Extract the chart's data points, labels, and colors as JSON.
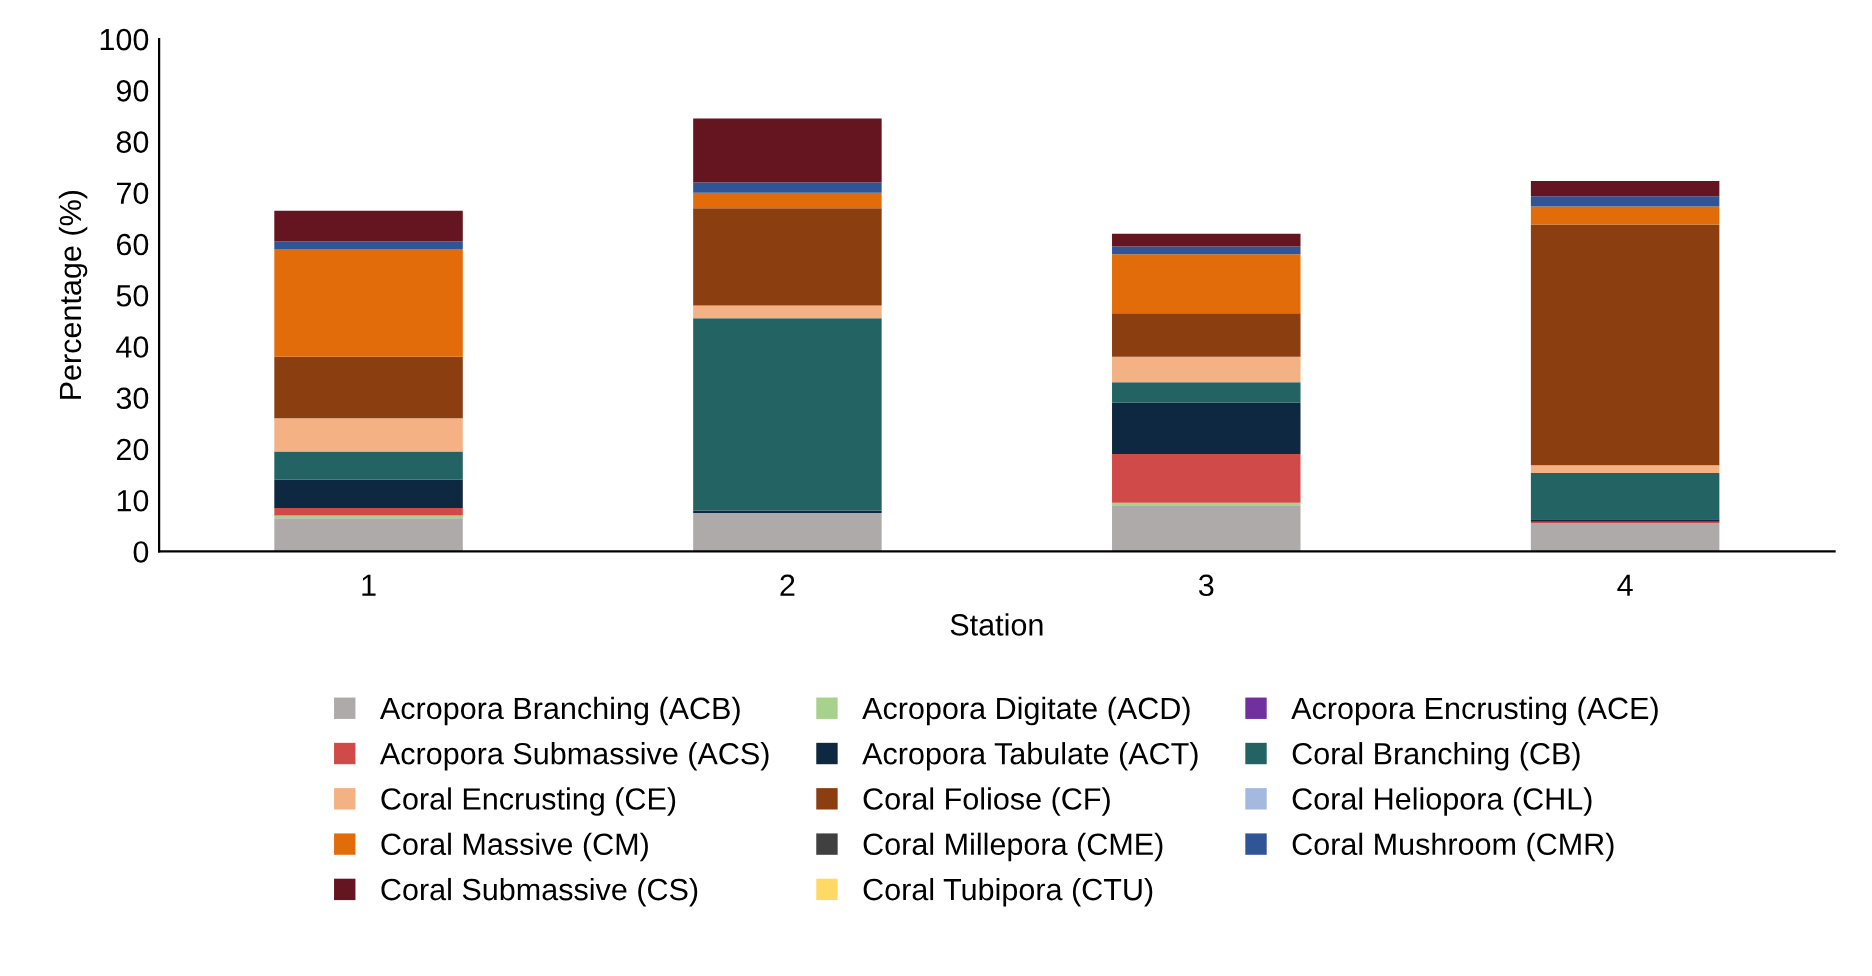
{
  "chart_data": {
    "type": "bar",
    "stacked": true,
    "xlabel": "Station",
    "ylabel": "Percentage (%)",
    "categories": [
      "1",
      "2",
      "3",
      "4"
    ],
    "ylim": [
      0,
      100
    ],
    "yticks": [
      0,
      10,
      20,
      30,
      40,
      50,
      60,
      70,
      80,
      90,
      100
    ],
    "grid": false,
    "legend": "bottom",
    "series": [
      {
        "name": "Acropora Branching (ACB)",
        "color": "#aeaaaa",
        "values": [
          6.5,
          7.5,
          9,
          5.5
        ]
      },
      {
        "name": "Acropora Digitate (ACD)",
        "color": "#a9d18e",
        "values": [
          0.5,
          0,
          0.5,
          0
        ]
      },
      {
        "name": "Acropora Encrusting (ACE)",
        "color": "#7030a0",
        "values": [
          0,
          0,
          0,
          0
        ]
      },
      {
        "name": "Acropora Submassive (ACS)",
        "color": "#d04a4a",
        "values": [
          1.5,
          0,
          9.5,
          0.3
        ]
      },
      {
        "name": "Acropora Tabulate (ACT)",
        "color": "#0e2841",
        "values": [
          5.5,
          0.5,
          10,
          0.5
        ]
      },
      {
        "name": "Coral Branching (CB)",
        "color": "#246363",
        "values": [
          5.5,
          37.5,
          4,
          9
        ]
      },
      {
        "name": "Coral Encrusting (CE)",
        "color": "#f4b183",
        "values": [
          6.5,
          2.5,
          5,
          1.5
        ]
      },
      {
        "name": "Coral Foliose (CF)",
        "color": "#8b3e0f",
        "values": [
          12,
          19,
          8.5,
          47
        ]
      },
      {
        "name": "Coral Heliopora (CHL)",
        "color": "#a4b8e0",
        "values": [
          0,
          0,
          0,
          0
        ]
      },
      {
        "name": "Coral Massive (CM)",
        "color": "#e36c0a",
        "values": [
          21,
          3,
          11.5,
          3.5
        ]
      },
      {
        "name": "Coral Millepora (CME)",
        "color": "#404040",
        "values": [
          0,
          0,
          0,
          0
        ]
      },
      {
        "name": "Coral Mushroom (CMR)",
        "color": "#2f5597",
        "values": [
          1.5,
          2,
          1.5,
          2
        ]
      },
      {
        "name": "Coral Submassive (CS)",
        "color": "#641520",
        "values": [
          6,
          12.5,
          2.5,
          3
        ]
      },
      {
        "name": "Coral Tubipora (CTU)",
        "color": "#ffd966",
        "values": [
          0,
          0,
          0,
          0
        ]
      }
    ]
  }
}
